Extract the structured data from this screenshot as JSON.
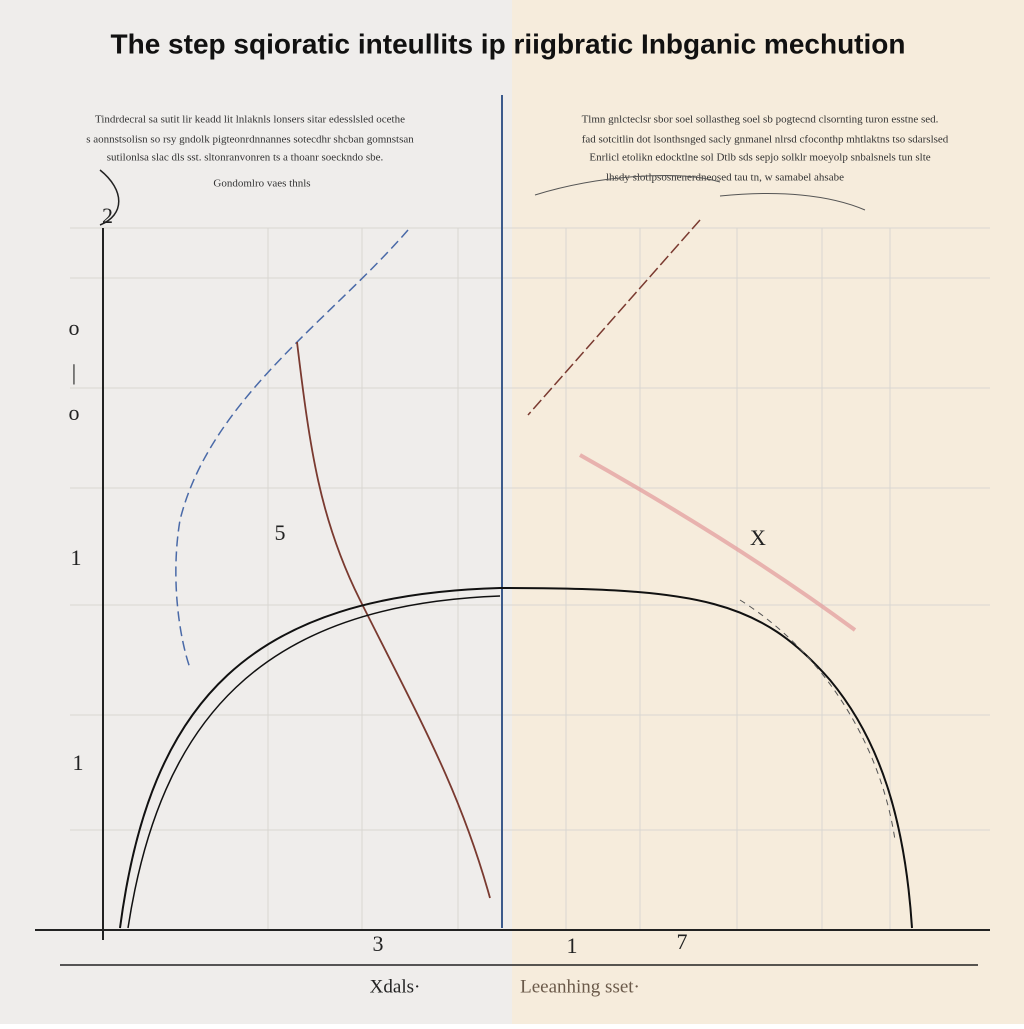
{
  "header": {
    "title": "The step sqioratic inteullits ip riigbratic Inbganic mechution"
  },
  "notes": {
    "left": [
      "Tindrdecral sa sutit lir keadd lit lnlaknls lonsers sitar edesslsled ocethe",
      "s aonnstsolisn so rsy gndolk pigteonrdnnannes sotecdhr shcban gomnstsan",
      "sutilonlsa slac dls sst. sltonranvonren ts a thoanr soeckndo sbe.",
      "Gondomlro vaes thnls"
    ],
    "right": [
      "Tlmn gnlcteclsr sbor soel sollastheg soel sb pogtecnd clsornting turon esstne sed.",
      "fad sotcitlin dot lsonthsnged sacly gnmanel nlrsd cfoconthp mhtlaktns tso sdarslsed",
      "Enrlicl etolikn edocktlne sol Dtlb sds sepjo solklr moeyolp snbalsnels tun slte",
      "lhsdy slotlpsosnenerdneosed tau tn, w samabel ahsabe"
    ]
  },
  "y_axis": {
    "labels": [
      "2",
      "o",
      "|",
      "o",
      "1",
      "1"
    ]
  },
  "x_axis": {
    "ticks": [
      "3",
      "1",
      "7"
    ],
    "left_label": "Xdals·",
    "right_label": "Leeanhing sset·"
  },
  "annotations": [
    "5",
    "X"
  ]
}
